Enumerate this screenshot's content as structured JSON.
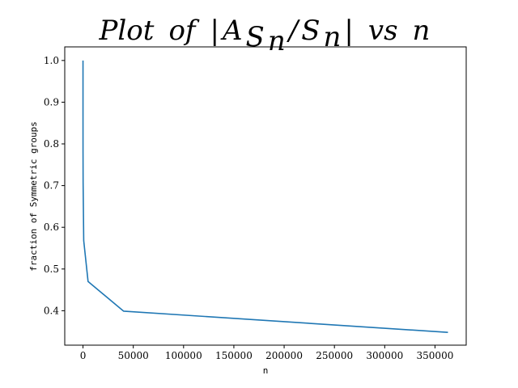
{
  "chart_data": {
    "type": "line",
    "title": {
      "plot": "Plot",
      "of": "of",
      "bar_left": "|",
      "A": "A",
      "S": "S",
      "n": "n",
      "slash": "/",
      "bar_right": "|",
      "vs": "vs",
      "n_end": "n"
    },
    "xlabel": "n",
    "ylabel": "fraction of Symmetric groups",
    "xlim": [
      -18144,
      381024
    ],
    "ylim": [
      0.3174,
      1.0326
    ],
    "xticks": [
      0,
      50000,
      100000,
      150000,
      200000,
      250000,
      300000,
      350000
    ],
    "xtick_labels": [
      "0",
      "50000",
      "100000",
      "150000",
      "200000",
      "250000",
      "300000",
      "350000"
    ],
    "yticks": [
      0.4,
      0.5,
      0.6,
      0.7,
      0.8,
      0.9,
      1.0
    ],
    "ytick_labels": [
      "0.4",
      "0.5",
      "0.6",
      "0.7",
      "0.8",
      "0.9",
      "1.0"
    ],
    "grid": false,
    "series": [
      {
        "color": "#1f77b4",
        "x": [
          1,
          2,
          6,
          24,
          120,
          720,
          5040,
          40320,
          362880
        ],
        "y": [
          1.0,
          0.933,
          0.867,
          0.78,
          0.707,
          0.568,
          0.47,
          0.399,
          0.348
        ]
      }
    ]
  }
}
